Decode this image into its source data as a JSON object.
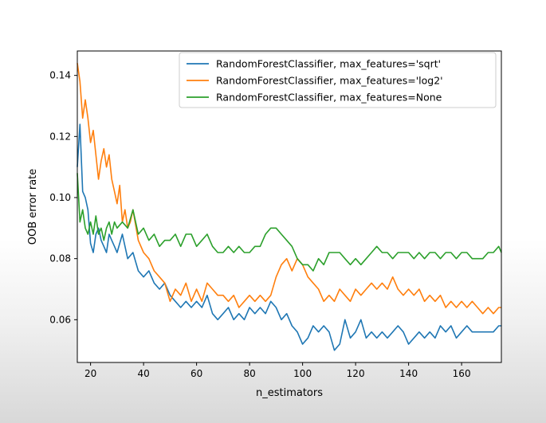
{
  "chart_data": {
    "type": "line",
    "title": "",
    "xlabel": "n_estimators",
    "ylabel": "OOB error rate",
    "xlim": [
      15,
      175
    ],
    "ylim": [
      0.046,
      0.148
    ],
    "xticks": [
      20,
      40,
      60,
      80,
      100,
      120,
      140,
      160
    ],
    "yticks": [
      0.06,
      0.08,
      0.1,
      0.12,
      0.14
    ],
    "ytick_labels": [
      "0.06",
      "0.08",
      "0.10",
      "0.12",
      "0.14"
    ],
    "grid": false,
    "legend_position": "top-right",
    "series": [
      {
        "name": "RandomForestClassifier, max_features='sqrt'",
        "color": "#1f77b4",
        "x": [
          15,
          16,
          17,
          18,
          19,
          20,
          21,
          22,
          23,
          24,
          25,
          26,
          27,
          28,
          29,
          30,
          32,
          34,
          36,
          38,
          40,
          42,
          44,
          46,
          48,
          50,
          52,
          54,
          56,
          58,
          60,
          62,
          64,
          66,
          68,
          70,
          72,
          74,
          76,
          78,
          80,
          82,
          84,
          86,
          88,
          90,
          92,
          94,
          96,
          98,
          100,
          102,
          104,
          106,
          108,
          110,
          112,
          114,
          116,
          118,
          120,
          122,
          124,
          126,
          128,
          130,
          132,
          134,
          136,
          138,
          140,
          142,
          144,
          146,
          148,
          150,
          152,
          154,
          156,
          158,
          160,
          162,
          164,
          166,
          168,
          170,
          172,
          174,
          175
        ],
        "values": [
          0.11,
          0.124,
          0.102,
          0.1,
          0.096,
          0.085,
          0.082,
          0.088,
          0.09,
          0.086,
          0.084,
          0.082,
          0.088,
          0.086,
          0.084,
          0.082,
          0.088,
          0.08,
          0.082,
          0.076,
          0.074,
          0.076,
          0.072,
          0.07,
          0.072,
          0.068,
          0.066,
          0.064,
          0.066,
          0.064,
          0.066,
          0.064,
          0.068,
          0.062,
          0.06,
          0.062,
          0.064,
          0.06,
          0.062,
          0.06,
          0.064,
          0.062,
          0.064,
          0.062,
          0.066,
          0.064,
          0.06,
          0.062,
          0.058,
          0.056,
          0.052,
          0.054,
          0.058,
          0.056,
          0.058,
          0.056,
          0.05,
          0.052,
          0.06,
          0.054,
          0.056,
          0.06,
          0.054,
          0.056,
          0.054,
          0.056,
          0.054,
          0.056,
          0.058,
          0.056,
          0.052,
          0.054,
          0.056,
          0.054,
          0.056,
          0.054,
          0.058,
          0.056,
          0.058,
          0.054,
          0.056,
          0.058,
          0.056,
          0.056,
          0.056,
          0.056,
          0.056,
          0.058,
          0.058
        ]
      },
      {
        "name": "RandomForestClassifier, max_features='log2'",
        "color": "#ff7f0e",
        "x": [
          15,
          16,
          17,
          18,
          19,
          20,
          21,
          22,
          23,
          24,
          25,
          26,
          27,
          28,
          29,
          30,
          31,
          32,
          33,
          34,
          35,
          36,
          38,
          40,
          42,
          44,
          46,
          48,
          50,
          52,
          54,
          56,
          58,
          60,
          62,
          64,
          66,
          68,
          70,
          72,
          74,
          76,
          78,
          80,
          82,
          84,
          86,
          88,
          90,
          92,
          94,
          96,
          98,
          100,
          102,
          104,
          106,
          108,
          110,
          112,
          114,
          116,
          118,
          120,
          122,
          124,
          126,
          128,
          130,
          132,
          134,
          136,
          138,
          140,
          142,
          144,
          146,
          148,
          150,
          152,
          154,
          156,
          158,
          160,
          162,
          164,
          166,
          168,
          170,
          172,
          174,
          175
        ],
        "values": [
          0.144,
          0.138,
          0.126,
          0.132,
          0.126,
          0.118,
          0.122,
          0.114,
          0.106,
          0.112,
          0.116,
          0.11,
          0.114,
          0.106,
          0.102,
          0.098,
          0.104,
          0.092,
          0.096,
          0.09,
          0.092,
          0.096,
          0.086,
          0.082,
          0.08,
          0.076,
          0.074,
          0.072,
          0.066,
          0.07,
          0.068,
          0.072,
          0.066,
          0.07,
          0.066,
          0.072,
          0.07,
          0.068,
          0.068,
          0.066,
          0.068,
          0.064,
          0.066,
          0.068,
          0.066,
          0.068,
          0.066,
          0.068,
          0.074,
          0.078,
          0.08,
          0.076,
          0.08,
          0.078,
          0.074,
          0.072,
          0.07,
          0.066,
          0.068,
          0.066,
          0.07,
          0.068,
          0.066,
          0.07,
          0.068,
          0.07,
          0.072,
          0.07,
          0.072,
          0.07,
          0.074,
          0.07,
          0.068,
          0.07,
          0.068,
          0.07,
          0.066,
          0.068,
          0.066,
          0.068,
          0.064,
          0.066,
          0.064,
          0.066,
          0.064,
          0.066,
          0.064,
          0.062,
          0.064,
          0.062,
          0.064,
          0.064
        ]
      },
      {
        "name": "RandomForestClassifier, max_features=None",
        "color": "#2ca02c",
        "x": [
          15,
          16,
          17,
          18,
          19,
          20,
          21,
          22,
          23,
          24,
          25,
          26,
          27,
          28,
          29,
          30,
          32,
          34,
          36,
          38,
          40,
          42,
          44,
          46,
          48,
          50,
          52,
          54,
          56,
          58,
          60,
          62,
          64,
          66,
          68,
          70,
          72,
          74,
          76,
          78,
          80,
          82,
          84,
          86,
          88,
          90,
          92,
          94,
          96,
          98,
          100,
          102,
          104,
          106,
          108,
          110,
          112,
          114,
          116,
          118,
          120,
          122,
          124,
          126,
          128,
          130,
          132,
          134,
          136,
          138,
          140,
          142,
          144,
          146,
          148,
          150,
          152,
          154,
          156,
          158,
          160,
          162,
          164,
          166,
          168,
          170,
          172,
          174,
          175
        ],
        "values": [
          0.108,
          0.092,
          0.096,
          0.09,
          0.088,
          0.092,
          0.088,
          0.094,
          0.088,
          0.09,
          0.086,
          0.09,
          0.092,
          0.088,
          0.092,
          0.09,
          0.092,
          0.09,
          0.096,
          0.088,
          0.09,
          0.086,
          0.088,
          0.084,
          0.086,
          0.086,
          0.088,
          0.084,
          0.088,
          0.088,
          0.084,
          0.086,
          0.088,
          0.084,
          0.082,
          0.082,
          0.084,
          0.082,
          0.084,
          0.082,
          0.082,
          0.084,
          0.084,
          0.088,
          0.09,
          0.09,
          0.088,
          0.086,
          0.084,
          0.08,
          0.078,
          0.078,
          0.076,
          0.08,
          0.078,
          0.082,
          0.082,
          0.082,
          0.08,
          0.078,
          0.08,
          0.078,
          0.08,
          0.082,
          0.084,
          0.082,
          0.082,
          0.08,
          0.082,
          0.082,
          0.082,
          0.08,
          0.082,
          0.08,
          0.082,
          0.082,
          0.08,
          0.082,
          0.082,
          0.08,
          0.082,
          0.082,
          0.08,
          0.08,
          0.08,
          0.082,
          0.082,
          0.084,
          0.082
        ]
      }
    ]
  }
}
